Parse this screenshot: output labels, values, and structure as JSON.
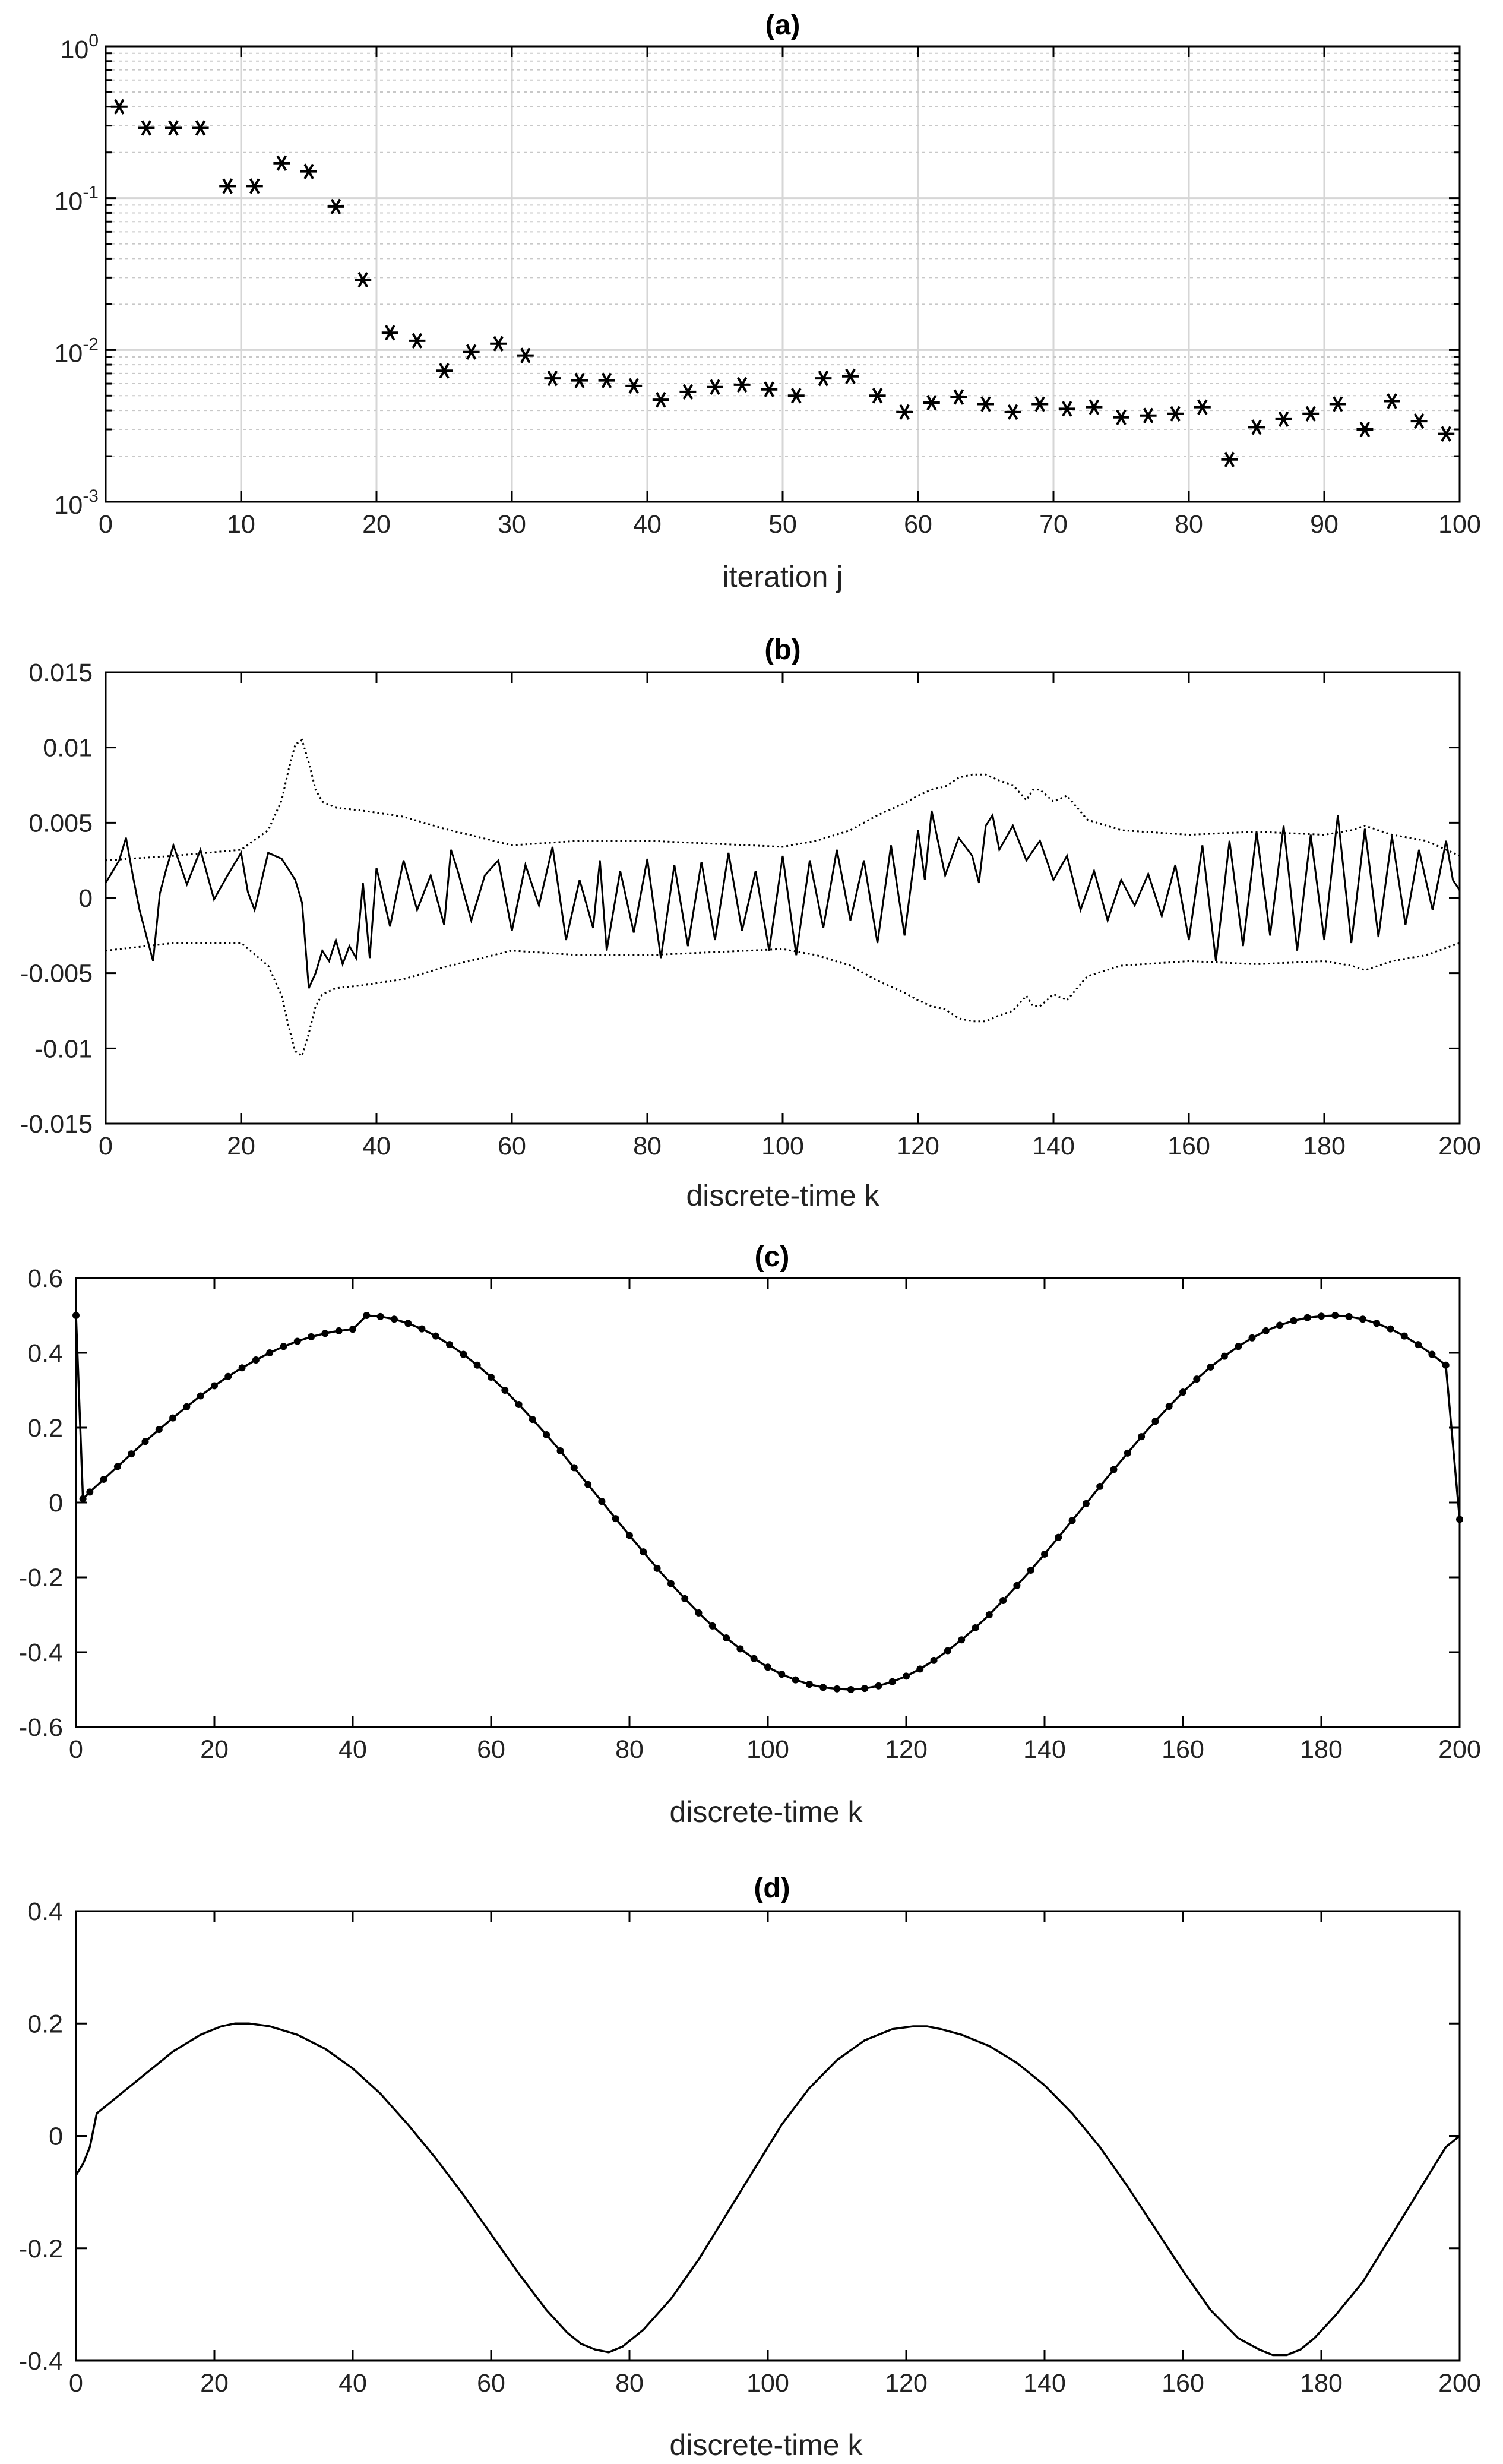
{
  "chart_data": [
    {
      "id": "a",
      "type": "scatter",
      "title": "(a)",
      "xlabel": "iteration j",
      "ylabel": "",
      "xlim": [
        0,
        100
      ],
      "ylim": [
        0.001,
        1
      ],
      "yscale": "log",
      "grid": true,
      "marker": "asterisk",
      "x_ticks": [
        0,
        10,
        20,
        30,
        40,
        50,
        60,
        70,
        80,
        90,
        100
      ],
      "y_tick_labels": [
        {
          "base": "10",
          "exp": "0",
          "value": 1
        },
        {
          "base": "10",
          "exp": "-1",
          "value": 0.1
        },
        {
          "base": "10",
          "exp": "-2",
          "value": 0.01
        },
        {
          "base": "10",
          "exp": "-3",
          "value": 0.001
        }
      ],
      "x": [
        1,
        3,
        5,
        7,
        9,
        11,
        13,
        15,
        17,
        19,
        21,
        23,
        25,
        27,
        29,
        31,
        33,
        35,
        37,
        39,
        41,
        43,
        45,
        47,
        49,
        51,
        53,
        55,
        57,
        59,
        61,
        63,
        65,
        67,
        69,
        71,
        73,
        75,
        77,
        79,
        81,
        83,
        85,
        87,
        89,
        91,
        93,
        95,
        97,
        99
      ],
      "y": [
        0.4,
        0.29,
        0.29,
        0.29,
        0.12,
        0.12,
        0.17,
        0.15,
        0.088,
        0.029,
        0.013,
        0.0115,
        0.0073,
        0.0097,
        0.011,
        0.0092,
        0.0065,
        0.0063,
        0.0063,
        0.0058,
        0.0047,
        0.0053,
        0.0057,
        0.0059,
        0.0055,
        0.005,
        0.0065,
        0.0067,
        0.005,
        0.0039,
        0.0045,
        0.0049,
        0.0044,
        0.0039,
        0.0044,
        0.0041,
        0.0042,
        0.0036,
        0.0037,
        0.0038,
        0.0042,
        0.0019,
        0.0031,
        0.0035,
        0.0038,
        0.0044,
        0.003,
        0.0046,
        0.0034,
        0.0028
      ]
    },
    {
      "id": "b",
      "type": "line",
      "title": "(b)",
      "xlabel": "discrete-time k",
      "ylabel": "",
      "xlim": [
        0,
        200
      ],
      "ylim": [
        -0.015,
        0.015
      ],
      "grid": false,
      "x_ticks": [
        0,
        20,
        40,
        60,
        80,
        100,
        120,
        140,
        160,
        180,
        200
      ],
      "y_ticks": [
        -0.015,
        -0.01,
        -0.005,
        0,
        0.005,
        0.01,
        0.015
      ],
      "y_tick_labels": [
        "-0.015",
        "-0.01",
        "-0.005",
        "0",
        "0.005",
        "0.01",
        "0.015"
      ],
      "error_k": [
        0,
        2,
        3,
        4,
        5,
        7,
        8,
        9,
        10,
        12,
        14,
        16,
        18,
        20,
        21,
        22,
        24,
        26,
        28,
        29,
        30,
        31,
        32,
        33,
        34,
        35,
        36,
        37,
        38,
        39,
        40,
        42,
        44,
        46,
        48,
        50,
        51,
        52,
        54,
        56,
        58,
        60,
        62,
        64,
        66,
        68,
        70,
        72,
        73,
        74,
        76,
        78,
        80,
        82,
        84,
        86,
        88,
        90,
        92,
        94,
        96,
        98,
        100,
        102,
        104,
        106,
        108,
        110,
        112,
        114,
        116,
        118,
        120,
        121,
        122,
        124,
        126,
        128,
        129,
        130,
        131,
        132,
        134,
        136,
        138,
        140,
        142,
        144,
        146,
        148,
        150,
        152,
        154,
        156,
        158,
        160,
        162,
        164,
        166,
        168,
        170,
        172,
        174,
        176,
        178,
        180,
        182,
        184,
        186,
        188,
        190,
        192,
        194,
        196,
        198,
        199,
        200
      ],
      "error_values": [
        0.001,
        0.0025,
        0.004,
        0.0015,
        -0.0008,
        -0.0042,
        0.0003,
        0.002,
        0.0035,
        0.0009,
        0.0032,
        -0.0001,
        0.0015,
        0.003,
        0.0004,
        -0.0008,
        0.003,
        0.0026,
        0.0012,
        -0.0003,
        -0.006,
        -0.005,
        -0.0035,
        -0.0042,
        -0.0028,
        -0.0044,
        -0.0032,
        -0.004,
        0.001,
        -0.004,
        0.002,
        -0.0019,
        0.0025,
        -0.0008,
        0.0015,
        -0.0018,
        0.0032,
        0.0018,
        -0.0015,
        0.0015,
        0.0025,
        -0.0022,
        0.0022,
        -0.0005,
        0.0034,
        -0.0028,
        0.0012,
        -0.002,
        0.0025,
        -0.0035,
        0.0018,
        -0.0023,
        0.0026,
        -0.004,
        0.0022,
        -0.0032,
        0.0024,
        -0.0028,
        0.003,
        -0.0022,
        0.0018,
        -0.0035,
        0.0028,
        -0.0038,
        0.0025,
        -0.002,
        0.0032,
        -0.0015,
        0.0025,
        -0.003,
        0.0035,
        -0.0025,
        0.0045,
        0.0012,
        0.0058,
        0.0015,
        0.004,
        0.0028,
        0.001,
        0.0048,
        0.0055,
        0.0032,
        0.0048,
        0.0025,
        0.0038,
        0.0012,
        0.0028,
        -0.0008,
        0.0018,
        -0.0015,
        0.0012,
        -0.0005,
        0.0016,
        -0.0012,
        0.0022,
        -0.0028,
        0.0035,
        -0.0042,
        0.0038,
        -0.0032,
        0.0044,
        -0.0025,
        0.0048,
        -0.0035,
        0.0042,
        -0.0028,
        0.0055,
        -0.003,
        0.0046,
        -0.0026,
        0.0041,
        -0.0018,
        0.0032,
        -0.0008,
        0.0038,
        0.0012,
        0.0005
      ],
      "bound_k": [
        0,
        10,
        20,
        24,
        26,
        27,
        28,
        29,
        30,
        31,
        32,
        34,
        38,
        44,
        50,
        60,
        70,
        80,
        90,
        100,
        105,
        110,
        114,
        118,
        120,
        122,
        124,
        126,
        128,
        130,
        132,
        134,
        136,
        137,
        138,
        140,
        142,
        145,
        150,
        160,
        170,
        180,
        184,
        186,
        190,
        195,
        200
      ],
      "bound_upper": [
        0.0025,
        0.0028,
        0.0032,
        0.0045,
        0.0065,
        0.0085,
        0.0102,
        0.0105,
        0.009,
        0.0072,
        0.0064,
        0.006,
        0.0058,
        0.0054,
        0.0046,
        0.0035,
        0.0038,
        0.0038,
        0.0036,
        0.0034,
        0.0038,
        0.0045,
        0.0055,
        0.0063,
        0.0068,
        0.0072,
        0.0074,
        0.008,
        0.0082,
        0.0082,
        0.0078,
        0.0075,
        0.0065,
        0.0072,
        0.0072,
        0.0064,
        0.0068,
        0.0052,
        0.0045,
        0.0042,
        0.0044,
        0.0042,
        0.0045,
        0.0048,
        0.0042,
        0.0038,
        0.0028
      ],
      "bound_lower": [
        -0.0035,
        -0.003,
        -0.003,
        -0.0045,
        -0.0065,
        -0.0085,
        -0.0102,
        -0.0105,
        -0.009,
        -0.0072,
        -0.0064,
        -0.006,
        -0.0058,
        -0.0054,
        -0.0046,
        -0.0035,
        -0.0038,
        -0.0038,
        -0.0036,
        -0.0034,
        -0.0038,
        -0.0045,
        -0.0055,
        -0.0063,
        -0.0068,
        -0.0072,
        -0.0074,
        -0.008,
        -0.0082,
        -0.0082,
        -0.0078,
        -0.0075,
        -0.0065,
        -0.0072,
        -0.0072,
        -0.0064,
        -0.0068,
        -0.0052,
        -0.0045,
        -0.0042,
        -0.0044,
        -0.0042,
        -0.0045,
        -0.0048,
        -0.0042,
        -0.0038,
        -0.003
      ]
    },
    {
      "id": "c",
      "type": "line",
      "title": "(c)",
      "xlabel": "discrete-time k",
      "ylabel": "",
      "xlim": [
        0,
        200
      ],
      "ylim": [
        -0.6,
        0.6
      ],
      "grid": false,
      "marker": "dot",
      "x_ticks": [
        0,
        20,
        40,
        60,
        80,
        100,
        120,
        140,
        160,
        180,
        200
      ],
      "y_ticks": [
        -0.6,
        -0.4,
        -0.2,
        0,
        0.2,
        0.4,
        0.6
      ],
      "y_tick_labels": [
        "-0.6",
        "-0.4",
        "-0.2",
        "0",
        "0.2",
        "0.4",
        "0.6"
      ],
      "x": [
        0,
        1,
        2,
        4,
        6,
        8,
        10,
        12,
        14,
        16,
        18,
        20,
        22,
        24,
        26,
        28,
        30,
        32,
        34,
        36,
        38,
        40,
        42,
        44,
        46,
        48,
        50,
        52,
        54,
        56,
        58,
        60,
        62,
        64,
        66,
        68,
        70,
        72,
        74,
        76,
        78,
        80,
        82,
        84,
        86,
        88,
        90,
        92,
        94,
        96,
        98,
        100,
        102,
        104,
        106,
        108,
        110,
        112,
        114,
        116,
        118,
        120,
        122,
        124,
        126,
        128,
        130,
        132,
        134,
        136,
        138,
        140,
        142,
        144,
        146,
        148,
        150,
        152,
        154,
        156,
        158,
        160,
        162,
        164,
        166,
        168,
        170,
        172,
        174,
        176,
        178,
        180,
        182,
        184,
        186,
        188,
        190,
        192,
        194,
        196,
        198,
        200
      ],
      "y": [
        0.5,
        0.01,
        0.028,
        0.062,
        0.096,
        0.13,
        0.163,
        0.195,
        0.226,
        0.256,
        0.285,
        0.312,
        0.337,
        0.36,
        0.381,
        0.4,
        0.417,
        0.431,
        0.443,
        0.452,
        0.459,
        0.463,
        0.5,
        0.497,
        0.49,
        0.479,
        0.464,
        0.445,
        0.422,
        0.396,
        0.367,
        0.335,
        0.3,
        0.262,
        0.222,
        0.181,
        0.138,
        0.093,
        0.048,
        0.003,
        -0.043,
        -0.088,
        -0.132,
        -0.176,
        -0.217,
        -0.257,
        -0.295,
        -0.33,
        -0.362,
        -0.391,
        -0.417,
        -0.44,
        -0.459,
        -0.474,
        -0.486,
        -0.494,
        -0.498,
        -0.5,
        -0.497,
        -0.49,
        -0.479,
        -0.464,
        -0.445,
        -0.422,
        -0.396,
        -0.367,
        -0.335,
        -0.3,
        -0.262,
        -0.222,
        -0.181,
        -0.138,
        -0.093,
        -0.048,
        -0.003,
        0.043,
        0.088,
        0.132,
        0.176,
        0.217,
        0.257,
        0.295,
        0.33,
        0.362,
        0.391,
        0.417,
        0.44,
        0.459,
        0.474,
        0.486,
        0.494,
        0.498,
        0.5,
        0.497,
        0.49,
        0.479,
        0.464,
        0.445,
        0.422,
        0.396,
        0.367,
        -0.045
      ]
    },
    {
      "id": "d",
      "type": "line",
      "title": "(d)",
      "xlabel": "discrete-time k",
      "ylabel": "",
      "xlim": [
        0,
        200
      ],
      "ylim": [
        -0.4,
        0.4
      ],
      "grid": false,
      "x_ticks": [
        0,
        20,
        40,
        60,
        80,
        100,
        120,
        140,
        160,
        180,
        200
      ],
      "y_ticks": [
        -0.4,
        -0.2,
        0,
        0.2,
        0.4
      ],
      "y_tick_labels": [
        "-0.4",
        "-0.2",
        "0",
        "0.2",
        "0.4"
      ],
      "x": [
        0,
        1,
        2,
        3,
        6,
        10,
        14,
        18,
        21,
        23,
        25,
        28,
        32,
        36,
        40,
        44,
        48,
        52,
        56,
        60,
        64,
        68,
        71,
        73,
        75,
        77,
        79,
        82,
        86,
        90,
        94,
        98,
        102,
        106,
        110,
        114,
        118,
        121,
        123,
        125,
        128,
        132,
        136,
        140,
        144,
        148,
        152,
        156,
        160,
        164,
        168,
        171,
        173,
        175,
        177,
        179,
        182,
        186,
        190,
        194,
        198,
        200
      ],
      "y": [
        -0.07,
        -0.05,
        -0.02,
        0.04,
        0.07,
        0.11,
        0.15,
        0.18,
        0.195,
        0.2,
        0.2,
        0.195,
        0.18,
        0.155,
        0.12,
        0.075,
        0.02,
        -0.04,
        -0.105,
        -0.175,
        -0.245,
        -0.31,
        -0.35,
        -0.37,
        -0.38,
        -0.385,
        -0.375,
        -0.345,
        -0.29,
        -0.22,
        -0.14,
        -0.06,
        0.02,
        0.085,
        0.135,
        0.17,
        0.19,
        0.195,
        0.195,
        0.19,
        0.18,
        0.16,
        0.13,
        0.09,
        0.04,
        -0.02,
        -0.09,
        -0.165,
        -0.24,
        -0.31,
        -0.36,
        -0.38,
        -0.39,
        -0.39,
        -0.38,
        -0.36,
        -0.32,
        -0.26,
        -0.18,
        -0.1,
        -0.02,
        0
      ]
    }
  ]
}
